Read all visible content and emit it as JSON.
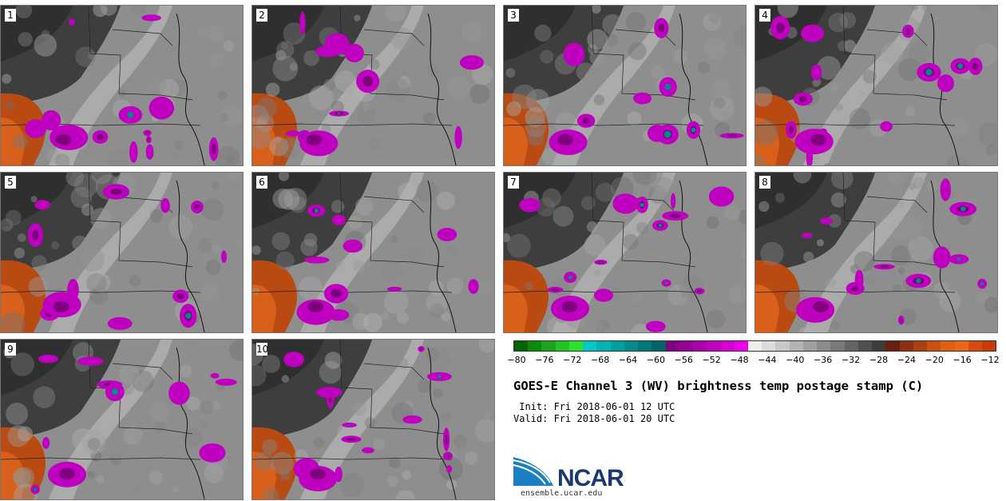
{
  "panels": [
    {
      "label": "1"
    },
    {
      "label": "2"
    },
    {
      "label": "3"
    },
    {
      "label": "4"
    },
    {
      "label": "5"
    },
    {
      "label": "6"
    },
    {
      "label": "7"
    },
    {
      "label": "8"
    },
    {
      "label": "9"
    },
    {
      "label": "10"
    }
  ],
  "colorbar": {
    "colors": [
      "#006400",
      "#0b8a0b",
      "#1aa51a",
      "#22c322",
      "#2de02d",
      "#00c8c8",
      "#00b4b4",
      "#00a0a0",
      "#008c8c",
      "#007878",
      "#006464",
      "#800080",
      "#960096",
      "#ab00ab",
      "#c000c0",
      "#d500d5",
      "#ea00ea",
      "#eeeeee",
      "#dcdcdc",
      "#c8c8c8",
      "#b4b4b4",
      "#a0a0a0",
      "#8c8c8c",
      "#787878",
      "#646464",
      "#505050",
      "#3c3c3c",
      "#6b1f10",
      "#8b3010",
      "#a84010",
      "#c85010",
      "#e06010",
      "#e86818",
      "#d84a10",
      "#c83a08"
    ],
    "ticks": [
      "−80",
      "−76",
      "−72",
      "−68",
      "−64",
      "−60",
      "−56",
      "−52",
      "−48",
      "−44",
      "−40",
      "−36",
      "−32",
      "−28",
      "−24",
      "−20",
      "−16",
      "−12"
    ]
  },
  "title": "GOES-E Channel 3 (WV) brightness temp postage stamp (C)",
  "init_text": " Init: Fri 2018-06-01 12 UTC",
  "valid_text": "Valid: Fri 2018-06-01 20 UTC",
  "logo": {
    "text": "NCAR",
    "url": "ensemble.ucar.edu"
  }
}
